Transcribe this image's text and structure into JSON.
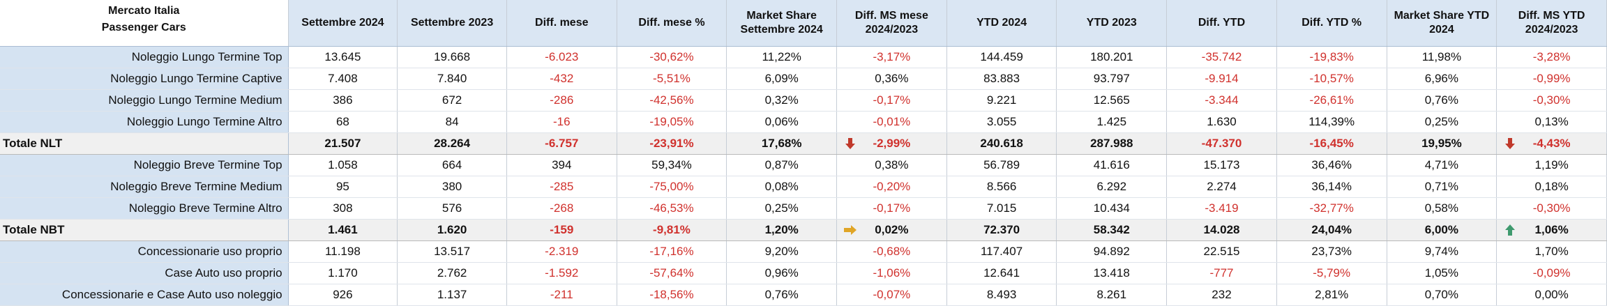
{
  "header": {
    "corner_line1": "Mercato Italia",
    "corner_line2": "Passenger Cars",
    "columns": [
      "Settembre 2024",
      "Settembre 2023",
      "Diff. mese",
      "Diff. mese %",
      "Market Share Settembre 2024",
      "Diff. MS mese 2024/2023",
      "YTD 2024",
      "YTD 2023",
      "Diff. YTD",
      "Diff. YTD %",
      "Market Share YTD 2024",
      "Diff. MS YTD 2024/2023"
    ]
  },
  "rows": [
    {
      "label": "Noleggio Lungo Termine Top",
      "cells": [
        "13.645",
        "19.668",
        "-6.023",
        "-30,62%",
        "11,22%",
        "-3,17%",
        "144.459",
        "180.201",
        "-35.742",
        "-19,83%",
        "11,98%",
        "-3,28%"
      ]
    },
    {
      "label": "Noleggio Lungo Termine Captive",
      "cells": [
        "7.408",
        "7.840",
        "-432",
        "-5,51%",
        "6,09%",
        "0,36%",
        "83.883",
        "93.797",
        "-9.914",
        "-10,57%",
        "6,96%",
        "-0,99%"
      ]
    },
    {
      "label": "Noleggio Lungo Termine Medium",
      "cells": [
        "386",
        "672",
        "-286",
        "-42,56%",
        "0,32%",
        "-0,17%",
        "9.221",
        "12.565",
        "-3.344",
        "-26,61%",
        "0,76%",
        "-0,30%"
      ]
    },
    {
      "label": "Noleggio Lungo Termine Altro",
      "cells": [
        "68",
        "84",
        "-16",
        "-19,05%",
        "0,06%",
        "-0,01%",
        "3.055",
        "1.425",
        "1.630",
        "114,39%",
        "0,25%",
        "0,13%"
      ]
    },
    {
      "label": "Totale NLT",
      "total": true,
      "ms_icon": "arrow-down-red-icon",
      "ytd_icon": "arrow-down-red-icon",
      "cells": [
        "21.507",
        "28.264",
        "-6.757",
        "-23,91%",
        "17,68%",
        "-2,99%",
        "240.618",
        "287.988",
        "-47.370",
        "-16,45%",
        "19,95%",
        "-4,43%"
      ]
    },
    {
      "label": "Noleggio Breve Termine Top",
      "cells": [
        "1.058",
        "664",
        "394",
        "59,34%",
        "0,87%",
        "0,38%",
        "56.789",
        "41.616",
        "15.173",
        "36,46%",
        "4,71%",
        "1,19%"
      ]
    },
    {
      "label": "Noleggio Breve Termine Medium",
      "cells": [
        "95",
        "380",
        "-285",
        "-75,00%",
        "0,08%",
        "-0,20%",
        "8.566",
        "6.292",
        "2.274",
        "36,14%",
        "0,71%",
        "0,18%"
      ]
    },
    {
      "label": "Noleggio Breve Termine Altro",
      "cells": [
        "308",
        "576",
        "-268",
        "-46,53%",
        "0,25%",
        "-0,17%",
        "7.015",
        "10.434",
        "-3.419",
        "-32,77%",
        "0,58%",
        "-0,30%"
      ]
    },
    {
      "label": "Totale NBT",
      "total": true,
      "ms_icon": "arrow-right-yellow-icon",
      "ytd_icon": "arrow-up-green-icon",
      "cells": [
        "1.461",
        "1.620",
        "-159",
        "-9,81%",
        "1,20%",
        "0,02%",
        "72.370",
        "58.342",
        "14.028",
        "24,04%",
        "6,00%",
        "1,06%"
      ]
    },
    {
      "label": "Concessionarie uso proprio",
      "cells": [
        "11.198",
        "13.517",
        "-2.319",
        "-17,16%",
        "9,20%",
        "-0,68%",
        "117.407",
        "94.892",
        "22.515",
        "23,73%",
        "9,74%",
        "1,70%"
      ]
    },
    {
      "label": "Case Auto uso proprio",
      "cells": [
        "1.170",
        "2.762",
        "-1.592",
        "-57,64%",
        "0,96%",
        "-1,06%",
        "12.641",
        "13.418",
        "-777",
        "-5,79%",
        "1,05%",
        "-0,09%"
      ]
    },
    {
      "label": "Concessionarie e Case Auto uso noleggio",
      "cells": [
        "926",
        "1.137",
        "-211",
        "-18,56%",
        "0,76%",
        "-0,07%",
        "8.493",
        "8.261",
        "232",
        "2,81%",
        "0,70%",
        "0,00%"
      ]
    }
  ],
  "colors": {
    "header_bg": "#dae6f3",
    "label_bg": "#d5e3f2",
    "negative_text": "#d0312d",
    "total_bg": "#f0f0f0",
    "arrow_down": "#c0392b",
    "arrow_right": "#e0a526",
    "arrow_up": "#3f9a6e"
  }
}
